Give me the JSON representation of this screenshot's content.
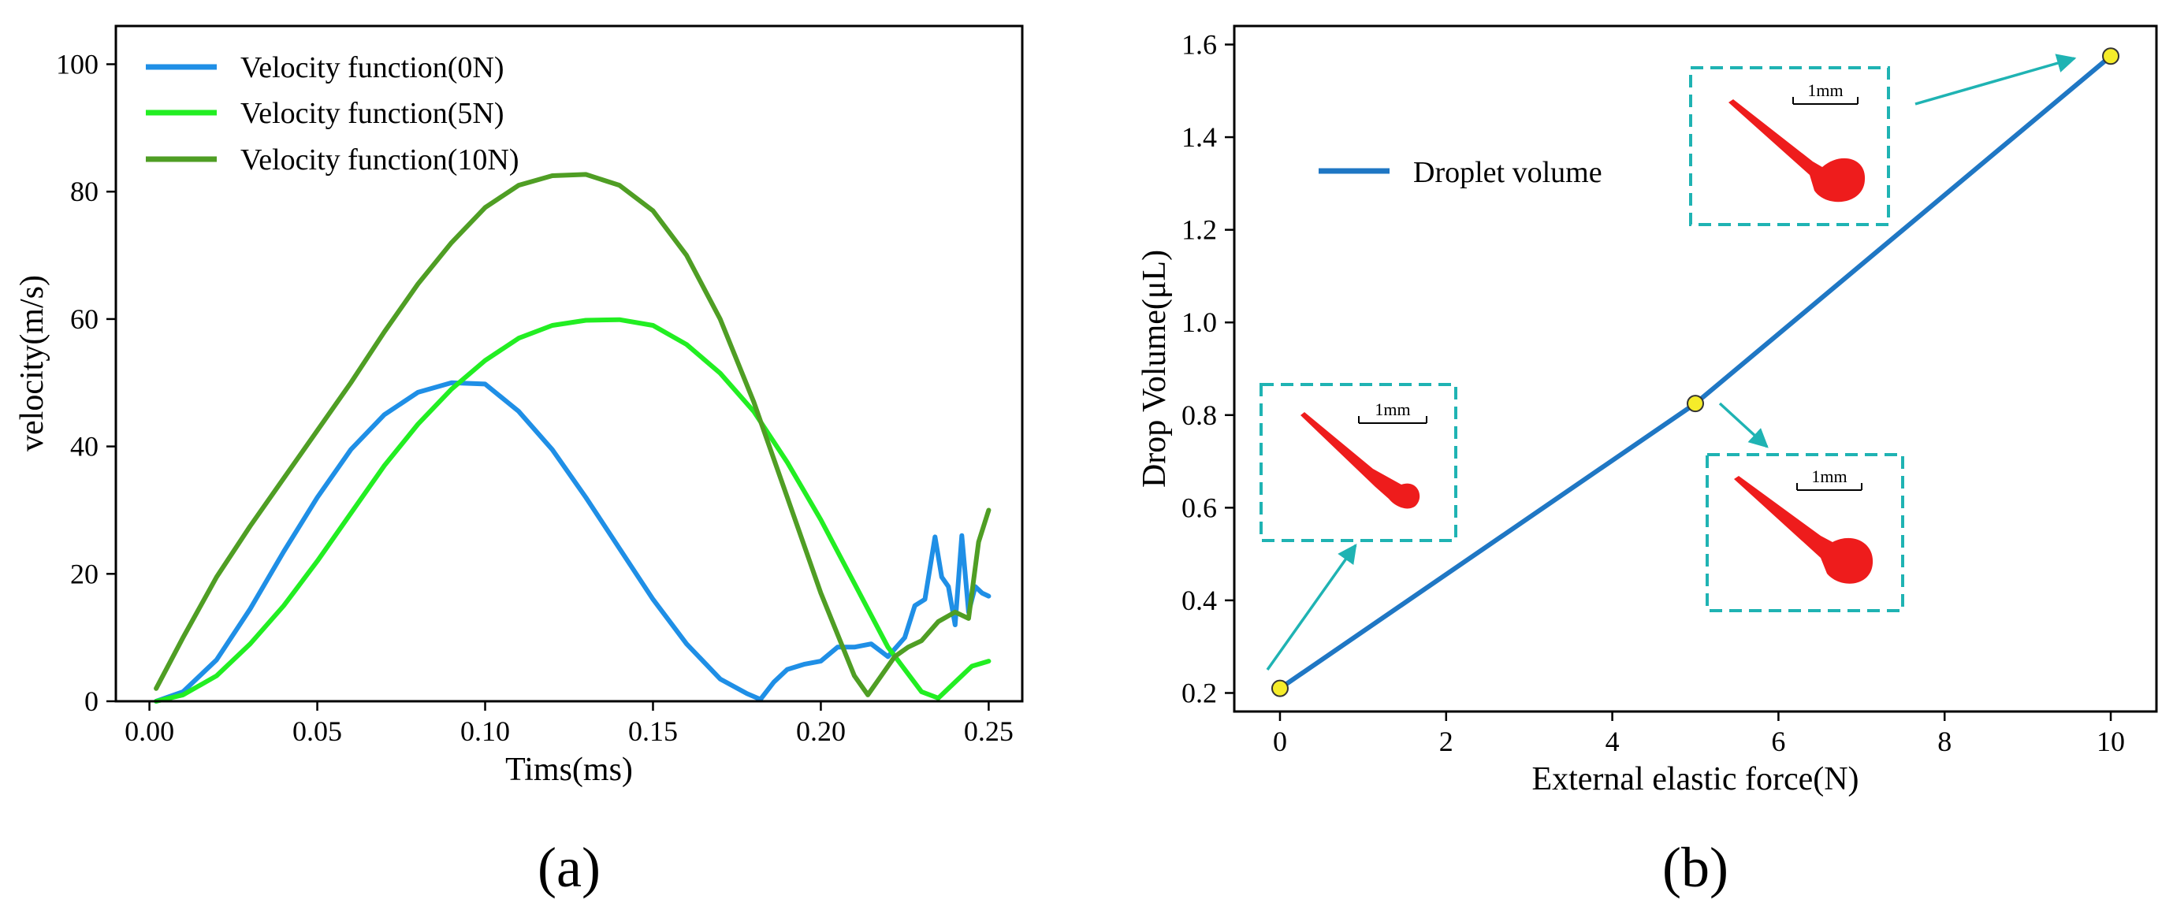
{
  "chart_data": [
    {
      "type": "line",
      "panel_label": "(a)",
      "xlabel": "Tims(ms)",
      "ylabel": "velocity(m/s)",
      "xlim": [
        -0.01,
        0.26
      ],
      "ylim": [
        0,
        106
      ],
      "xticks": [
        "0.00",
        "0.05",
        "0.10",
        "0.15",
        "0.20",
        "0.25"
      ],
      "xtick_values": [
        0,
        0.05,
        0.1,
        0.15,
        0.2,
        0.25
      ],
      "yticks": [
        "0",
        "20",
        "40",
        "60",
        "80",
        "100"
      ],
      "ytick_values": [
        0,
        20,
        40,
        60,
        80,
        100
      ],
      "legend_position": "upper-left",
      "series": [
        {
          "name": "Velocity function(0N)",
          "color": "#1f8fe6",
          "x": [
            0.002,
            0.01,
            0.02,
            0.03,
            0.04,
            0.05,
            0.06,
            0.07,
            0.08,
            0.09,
            0.1,
            0.11,
            0.12,
            0.13,
            0.14,
            0.15,
            0.16,
            0.17,
            0.178,
            0.182,
            0.186,
            0.19,
            0.195,
            0.2,
            0.205,
            0.21,
            0.215,
            0.22,
            0.225,
            0.228,
            0.231,
            0.234,
            0.236,
            0.238,
            0.24,
            0.242,
            0.244,
            0.246,
            0.248,
            0.25
          ],
          "y": [
            0,
            1.5,
            6.5,
            14.5,
            23.5,
            32,
            39.5,
            45,
            48.5,
            50,
            49.8,
            45.5,
            39.5,
            32,
            24,
            16,
            9,
            3.5,
            1.2,
            0.3,
            3,
            5,
            5.8,
            6.3,
            8.5,
            8.5,
            9,
            7,
            10,
            15,
            16,
            25.8,
            19.5,
            18,
            12,
            26,
            14,
            18,
            17,
            16.5
          ]
        },
        {
          "name": "Velocity function(5N)",
          "color": "#22ee22",
          "x": [
            0.002,
            0.01,
            0.02,
            0.03,
            0.04,
            0.05,
            0.06,
            0.07,
            0.08,
            0.09,
            0.1,
            0.11,
            0.12,
            0.13,
            0.14,
            0.15,
            0.16,
            0.17,
            0.18,
            0.19,
            0.2,
            0.21,
            0.22,
            0.23,
            0.235,
            0.24,
            0.245,
            0.25
          ],
          "y": [
            0,
            1,
            4,
            9,
            15,
            22,
            29.5,
            37,
            43.5,
            49,
            53.5,
            57,
            59,
            59.8,
            59.9,
            59,
            56,
            51.5,
            45.5,
            37.5,
            28.5,
            18.5,
            8.5,
            1.5,
            0.5,
            3,
            5.5,
            6.3
          ]
        },
        {
          "name": "Velocity function(10N)",
          "color": "#4f9e24",
          "x": [
            0.002,
            0.01,
            0.02,
            0.03,
            0.04,
            0.05,
            0.06,
            0.07,
            0.08,
            0.09,
            0.1,
            0.11,
            0.12,
            0.13,
            0.14,
            0.15,
            0.16,
            0.17,
            0.18,
            0.19,
            0.2,
            0.21,
            0.214,
            0.218,
            0.222,
            0.226,
            0.23,
            0.235,
            0.24,
            0.244,
            0.247,
            0.25
          ],
          "y": [
            2,
            10,
            19.5,
            27.5,
            35,
            42.5,
            50,
            58,
            65.5,
            72,
            77.5,
            81,
            82.5,
            82.7,
            81,
            77,
            70,
            60,
            47,
            32,
            17,
            4,
            1,
            4,
            7,
            8.5,
            9.5,
            12.5,
            14,
            13,
            25,
            30
          ]
        }
      ]
    },
    {
      "type": "line",
      "panel_label": "(b)",
      "xlabel": "External elastic force(N)",
      "ylabel": "Drop Volume(μL)",
      "xlim": [
        -0.55,
        10.55
      ],
      "ylim": [
        0.16,
        1.64
      ],
      "xticks": [
        "0",
        "2",
        "4",
        "6",
        "8",
        "10"
      ],
      "xtick_values": [
        0,
        2,
        4,
        6,
        8,
        10
      ],
      "yticks": [
        "0.2",
        "0.4",
        "0.6",
        "0.8",
        "1.0",
        "1.2",
        "1.4",
        "1.6"
      ],
      "ytick_values": [
        0.2,
        0.4,
        0.6,
        0.8,
        1.0,
        1.2,
        1.4,
        1.6
      ],
      "legend_position": "upper-left",
      "series": [
        {
          "name": "Droplet volume",
          "color": "#1f77c4",
          "x": [
            0,
            5,
            10
          ],
          "y": [
            0.21,
            0.825,
            1.575
          ]
        }
      ],
      "marker_color": "#f5ec2a",
      "annotation_color": "#1fb3b3",
      "scale_bar_label": "1mm",
      "insets": [
        {
          "name": "inset-0N",
          "points_to_force": 0
        },
        {
          "name": "inset-5N",
          "points_to_force": 5
        },
        {
          "name": "inset-10N",
          "points_to_force": 10
        }
      ]
    }
  ]
}
